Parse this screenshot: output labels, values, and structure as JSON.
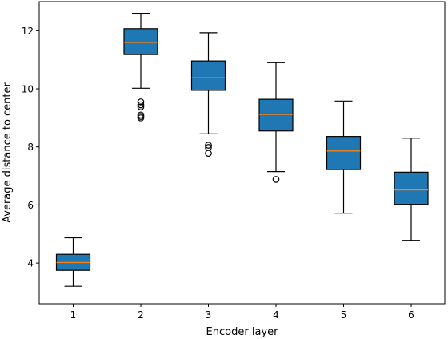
{
  "chart_data": {
    "type": "boxplot",
    "xlabel": "Encoder layer",
    "ylabel": "Average distance to center",
    "categories": [
      "1",
      "2",
      "3",
      "4",
      "5",
      "6"
    ],
    "y_ticks": [
      "4",
      "6",
      "8",
      "10",
      "12"
    ],
    "ylim": [
      2.6,
      13.0
    ],
    "grid": false,
    "box_color": "#1f77b4",
    "median_color": "#ff7f0e",
    "boxes": [
      {
        "category": "1",
        "whisker_low": 3.2,
        "q1": 3.75,
        "median": 4.02,
        "q3": 4.3,
        "whisker_high": 4.87,
        "outliers": []
      },
      {
        "category": "2",
        "whisker_low": 10.02,
        "q1": 11.18,
        "median": 11.6,
        "q3": 12.07,
        "whisker_high": 12.6,
        "outliers": [
          9.55,
          9.45,
          9.38,
          9.1,
          9.05,
          9.0
        ]
      },
      {
        "category": "3",
        "whisker_low": 8.45,
        "q1": 9.95,
        "median": 10.38,
        "q3": 10.96,
        "whisker_high": 11.93,
        "outliers": [
          8.06,
          7.98,
          7.78
        ]
      },
      {
        "category": "4",
        "whisker_low": 7.15,
        "q1": 8.55,
        "median": 9.12,
        "q3": 9.64,
        "whisker_high": 10.9,
        "outliers": [
          6.88
        ]
      },
      {
        "category": "5",
        "whisker_low": 5.72,
        "q1": 7.22,
        "median": 7.86,
        "q3": 8.36,
        "whisker_high": 9.58,
        "outliers": []
      },
      {
        "category": "6",
        "whisker_low": 4.78,
        "q1": 6.02,
        "median": 6.52,
        "q3": 7.13,
        "whisker_high": 8.3,
        "outliers": []
      }
    ]
  }
}
